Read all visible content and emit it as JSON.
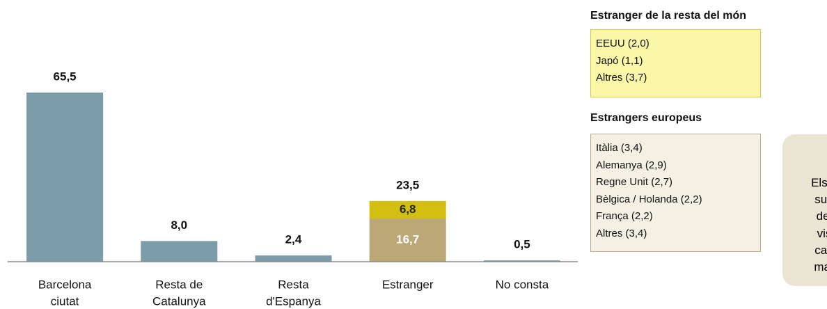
{
  "chart_data": {
    "type": "bar",
    "categories": [
      [
        "Barcelona",
        "ciutat"
      ],
      [
        "Resta de",
        "Catalunya"
      ],
      [
        "Resta",
        "d'Espanya"
      ],
      [
        "Estranger"
      ],
      [
        "No consta"
      ]
    ],
    "series": [
      {
        "colors": [
          "#7b9ca8",
          "#7b9ca8",
          "#7b9ca8",
          "#bba876",
          "#7b9ca8"
        ],
        "values": [
          65.5,
          8.0,
          2.4,
          16.7,
          0.5
        ],
        "value_labels": [
          "65,5",
          "8,0",
          "2,4",
          "16,7",
          "0,5"
        ]
      },
      {
        "color": "#d2bf12",
        "values": [
          null,
          null,
          null,
          6.8,
          null
        ],
        "value_labels": [
          null,
          null,
          null,
          "6,8",
          null
        ]
      }
    ],
    "totals": [
      null,
      null,
      null,
      23.5,
      null
    ],
    "total_labels": [
      null,
      null,
      null,
      "23,5",
      null
    ]
  },
  "panels": [
    {
      "title": "Estranger de la resta del món",
      "items": [
        "EEUU (2,0)",
        "Japó (1,1)",
        "Altres (3,7)"
      ]
    },
    {
      "title": "Estrangers europeus",
      "items": [
        "Itàlia (3,4)",
        "Alemanya (2,9)",
        "Regne Unit (2,7)",
        "Bèlgica / Holanda (2,2)",
        "França (2,2)",
        "Altres (3,4)"
      ]
    }
  ],
  "note": {
    "lines": [
      "Els b",
      "sup",
      "del",
      "vis",
      "cap",
      "mar"
    ]
  }
}
